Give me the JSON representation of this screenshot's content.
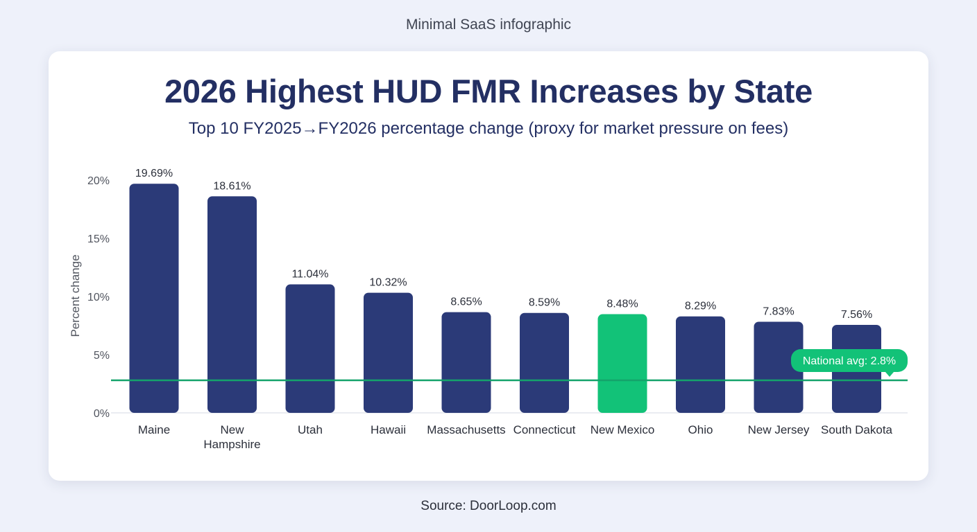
{
  "page": {
    "caption": "Minimal SaaS infographic",
    "source": "Source: DoorLoop.com"
  },
  "chart_data": {
    "type": "bar",
    "title": "2026 Highest HUD FMR Increases by State",
    "subtitle": "Top 10 FY2025→FY2026 percentage change (proxy for market pressure on fees)",
    "xlabel": "",
    "ylabel": "Percent change",
    "ylim": [
      0,
      20
    ],
    "yticks": [
      0,
      5,
      10,
      15,
      20
    ],
    "ytick_labels": [
      "0%",
      "5%",
      "10%",
      "15%",
      "20%"
    ],
    "categories": [
      "Maine",
      "New Hampshire",
      "Utah",
      "Hawaii",
      "Massachusetts",
      "Connecticut",
      "New Mexico",
      "Ohio",
      "New Jersey",
      "South Dakota"
    ],
    "values": [
      19.69,
      18.61,
      11.04,
      10.32,
      8.65,
      8.59,
      8.48,
      8.29,
      7.83,
      7.56
    ],
    "value_labels": [
      "19.69%",
      "18.61%",
      "11.04%",
      "10.32%",
      "8.65%",
      "8.59%",
      "8.48%",
      "8.29%",
      "7.83%",
      "7.56%"
    ],
    "highlight_category": "New Mexico",
    "colors": {
      "bar": "#2b3a78",
      "highlight": "#12c278",
      "avg_line": "#14a36b",
      "avg_badge": "#12c278"
    },
    "reference_line": {
      "value": 2.8,
      "label": "National avg: 2.8%"
    },
    "grid": false,
    "legend": "none"
  }
}
